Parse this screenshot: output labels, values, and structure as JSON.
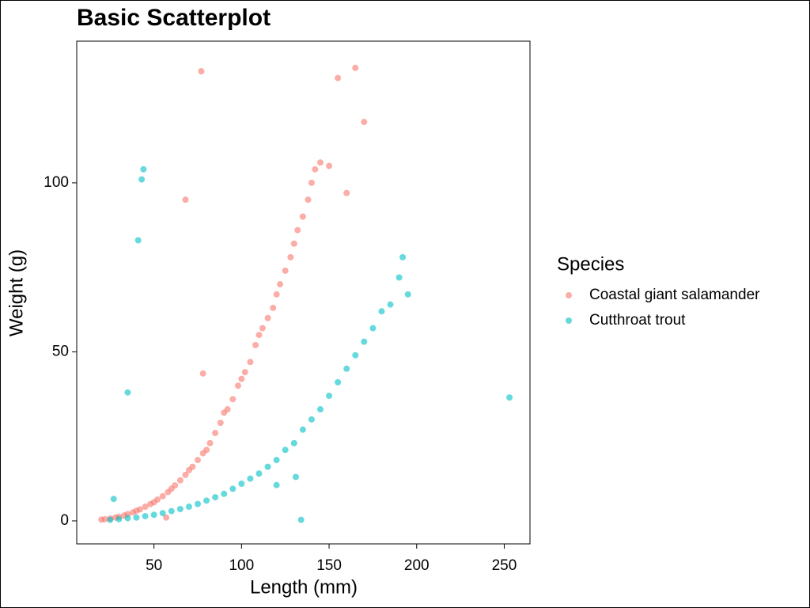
{
  "chart_data": {
    "type": "scatter",
    "title": "Basic Scatterplot",
    "x_label": "Length (mm)",
    "y_label": "Weight (g)",
    "legend_title": "Species",
    "xlim": [
      5.9,
      264.7
    ],
    "ylim": [
      -6.8,
      141.9
    ],
    "xticks": [
      50,
      100,
      150,
      200,
      250
    ],
    "yticks": [
      0,
      50,
      100
    ],
    "series": [
      {
        "name": "Coastal giant salamander",
        "color": "#F8766D",
        "x": [
          20,
          22,
          25,
          28,
          30,
          33,
          35,
          38,
          40,
          42,
          45,
          48,
          50,
          52,
          55,
          58,
          60,
          62,
          65,
          68,
          70,
          72,
          75,
          78,
          80,
          82,
          85,
          88,
          90,
          92,
          95,
          98,
          100,
          102,
          105,
          108,
          110,
          112,
          115,
          118,
          120,
          122,
          125,
          128,
          130,
          132,
          135,
          138,
          140,
          142,
          145,
          150,
          155,
          160,
          165,
          170,
          77,
          68,
          57,
          78
        ],
        "values": [
          0.4,
          0.5,
          0.7,
          1,
          1.2,
          1.6,
          2,
          2.5,
          3,
          3.4,
          4.2,
          5,
          5.5,
          6.3,
          7.3,
          8.5,
          9.5,
          10.5,
          12,
          13.6,
          15,
          16,
          18,
          20,
          21,
          23,
          26,
          29,
          32,
          33,
          36,
          40,
          42,
          44,
          47,
          52,
          55,
          57,
          60,
          63,
          67,
          70,
          74,
          78,
          82,
          86,
          90,
          95,
          100,
          104,
          106,
          105,
          131,
          97,
          134,
          118,
          133,
          95,
          1,
          43.6
        ]
      },
      {
        "name": "Cutthroat trout",
        "color": "#00BFC4",
        "x": [
          25,
          30,
          35,
          40,
          45,
          50,
          55,
          60,
          65,
          70,
          75,
          80,
          85,
          90,
          95,
          100,
          105,
          110,
          115,
          120,
          125,
          130,
          135,
          140,
          145,
          150,
          155,
          160,
          165,
          170,
          175,
          180,
          185,
          190,
          192,
          195,
          44,
          43,
          41,
          35,
          253,
          134,
          131,
          120,
          27
        ],
        "values": [
          0.3,
          0.5,
          0.8,
          1,
          1.4,
          1.8,
          2.3,
          2.9,
          3.5,
          4.2,
          5,
          6,
          7,
          8,
          9.5,
          11,
          12.5,
          14,
          16,
          18,
          21,
          23,
          27,
          30,
          33,
          37,
          41,
          45,
          49,
          53,
          57,
          62,
          64,
          72,
          78,
          67,
          104,
          101,
          83,
          38,
          36.5,
          0.3,
          13,
          10.6,
          6.5
        ]
      }
    ]
  }
}
